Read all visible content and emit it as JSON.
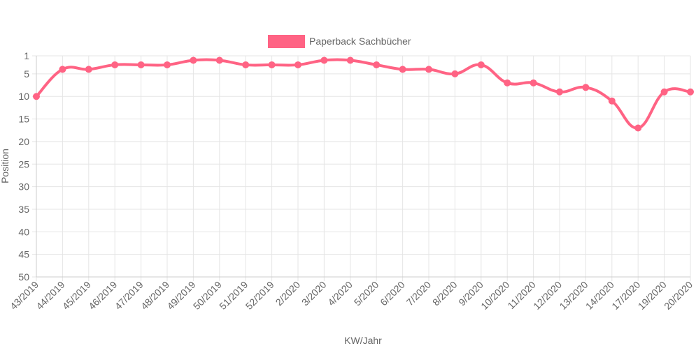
{
  "chart_data": {
    "type": "line",
    "categories": [
      "43/2019",
      "44/2019",
      "45/2019",
      "46/2019",
      "47/2019",
      "48/2019",
      "49/2019",
      "50/2019",
      "51/2019",
      "52/2019",
      "2/2020",
      "3/2020",
      "4/2020",
      "5/2020",
      "6/2020",
      "7/2020",
      "8/2020",
      "9/2020",
      "10/2020",
      "11/2020",
      "12/2020",
      "13/2020",
      "14/2020",
      "17/2020",
      "19/2020",
      "20/2020"
    ],
    "series": [
      {
        "name": "Paperback Sachbücher",
        "color": "#ff6384",
        "values": [
          10,
          4,
          4,
          3,
          3,
          3,
          2,
          2,
          3,
          3,
          3,
          2,
          2,
          3,
          4,
          4,
          5,
          3,
          7,
          7,
          9,
          8,
          11,
          17,
          9,
          9
        ]
      }
    ],
    "title": "",
    "xlabel": "KW/Jahr",
    "ylabel": "Position",
    "ylim": [
      1,
      50
    ],
    "yticks": [
      1,
      5,
      10,
      15,
      20,
      25,
      30,
      35,
      40,
      45,
      50
    ],
    "y_reversed": true,
    "grid": true,
    "legend_position": "top"
  }
}
